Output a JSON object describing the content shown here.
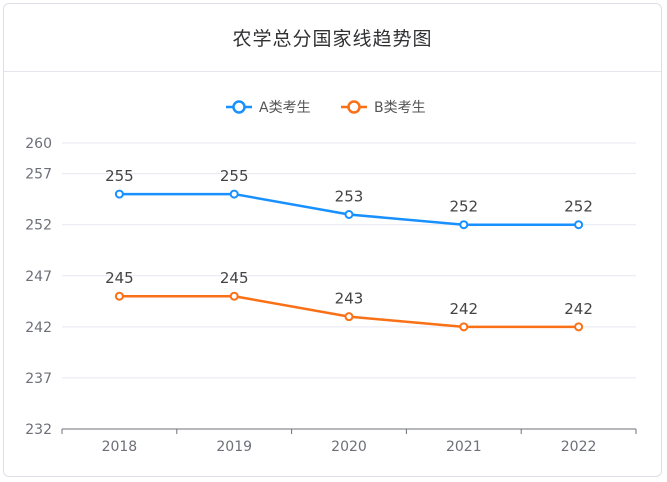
{
  "title": "农学总分国家线趋势图",
  "chart_data": {
    "type": "line",
    "title": "农学总分国家线趋势图",
    "categories": [
      "2018",
      "2019",
      "2020",
      "2021",
      "2022"
    ],
    "yticks": [
      232,
      237,
      242,
      247,
      252,
      257,
      260
    ],
    "ylim": [
      232,
      260
    ],
    "xlabel": "",
    "ylabel": "",
    "grid": true,
    "legend_position": "top-center",
    "series": [
      {
        "name": "A类考生",
        "color": "#1890ff",
        "values": [
          255,
          255,
          253,
          252,
          252
        ]
      },
      {
        "name": "B类考生",
        "color": "#fa7016",
        "values": [
          245,
          245,
          243,
          242,
          242
        ]
      }
    ]
  }
}
